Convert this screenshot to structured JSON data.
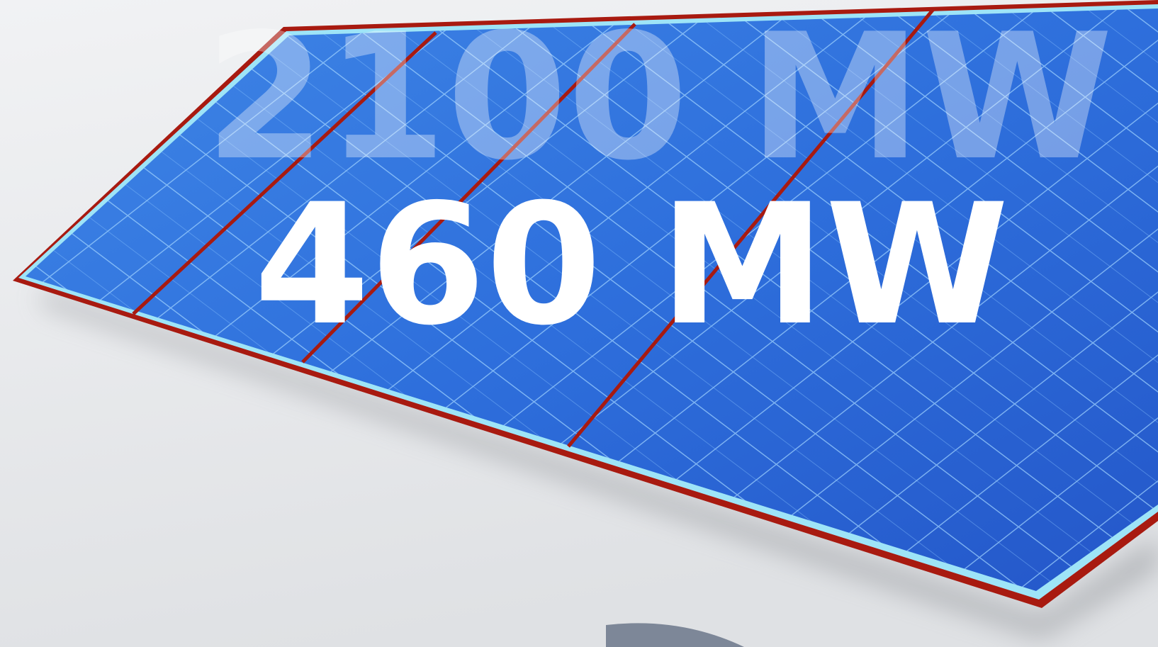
{
  "background_text": "2100 MW",
  "headline": "460 MW"
}
